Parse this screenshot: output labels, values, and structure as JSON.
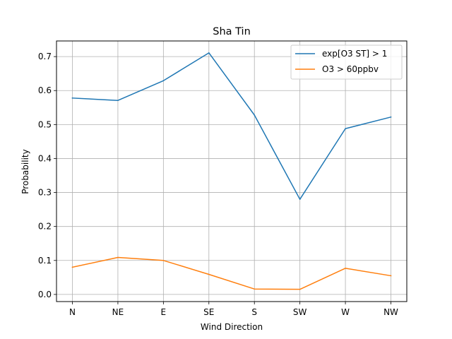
{
  "chart_data": {
    "type": "line",
    "title": "Sha Tin",
    "xlabel": "Wind Direction",
    "ylabel": "Probability",
    "categories": [
      "N",
      "NE",
      "E",
      "SE",
      "S",
      "SW",
      "W",
      "NW"
    ],
    "ylim": [
      -0.021,
      0.746
    ],
    "yticks": [
      0.0,
      0.1,
      0.2,
      0.3,
      0.4,
      0.5,
      0.6,
      0.7
    ],
    "ytick_labels": [
      "0.0",
      "0.1",
      "0.2",
      "0.3",
      "0.4",
      "0.5",
      "0.6",
      "0.7"
    ],
    "grid": true,
    "legend_position": "top-right",
    "series": [
      {
        "name": "exp[O3 ST] > 1",
        "color": "#1f77b4",
        "values": [
          0.578,
          0.571,
          0.629,
          0.711,
          0.528,
          0.28,
          0.488,
          0.522
        ]
      },
      {
        "name": "O3 > 60ppbv",
        "color": "#ff7f0e",
        "values": [
          0.08,
          0.109,
          0.1,
          0.059,
          0.016,
          0.015,
          0.077,
          0.055
        ]
      }
    ]
  }
}
